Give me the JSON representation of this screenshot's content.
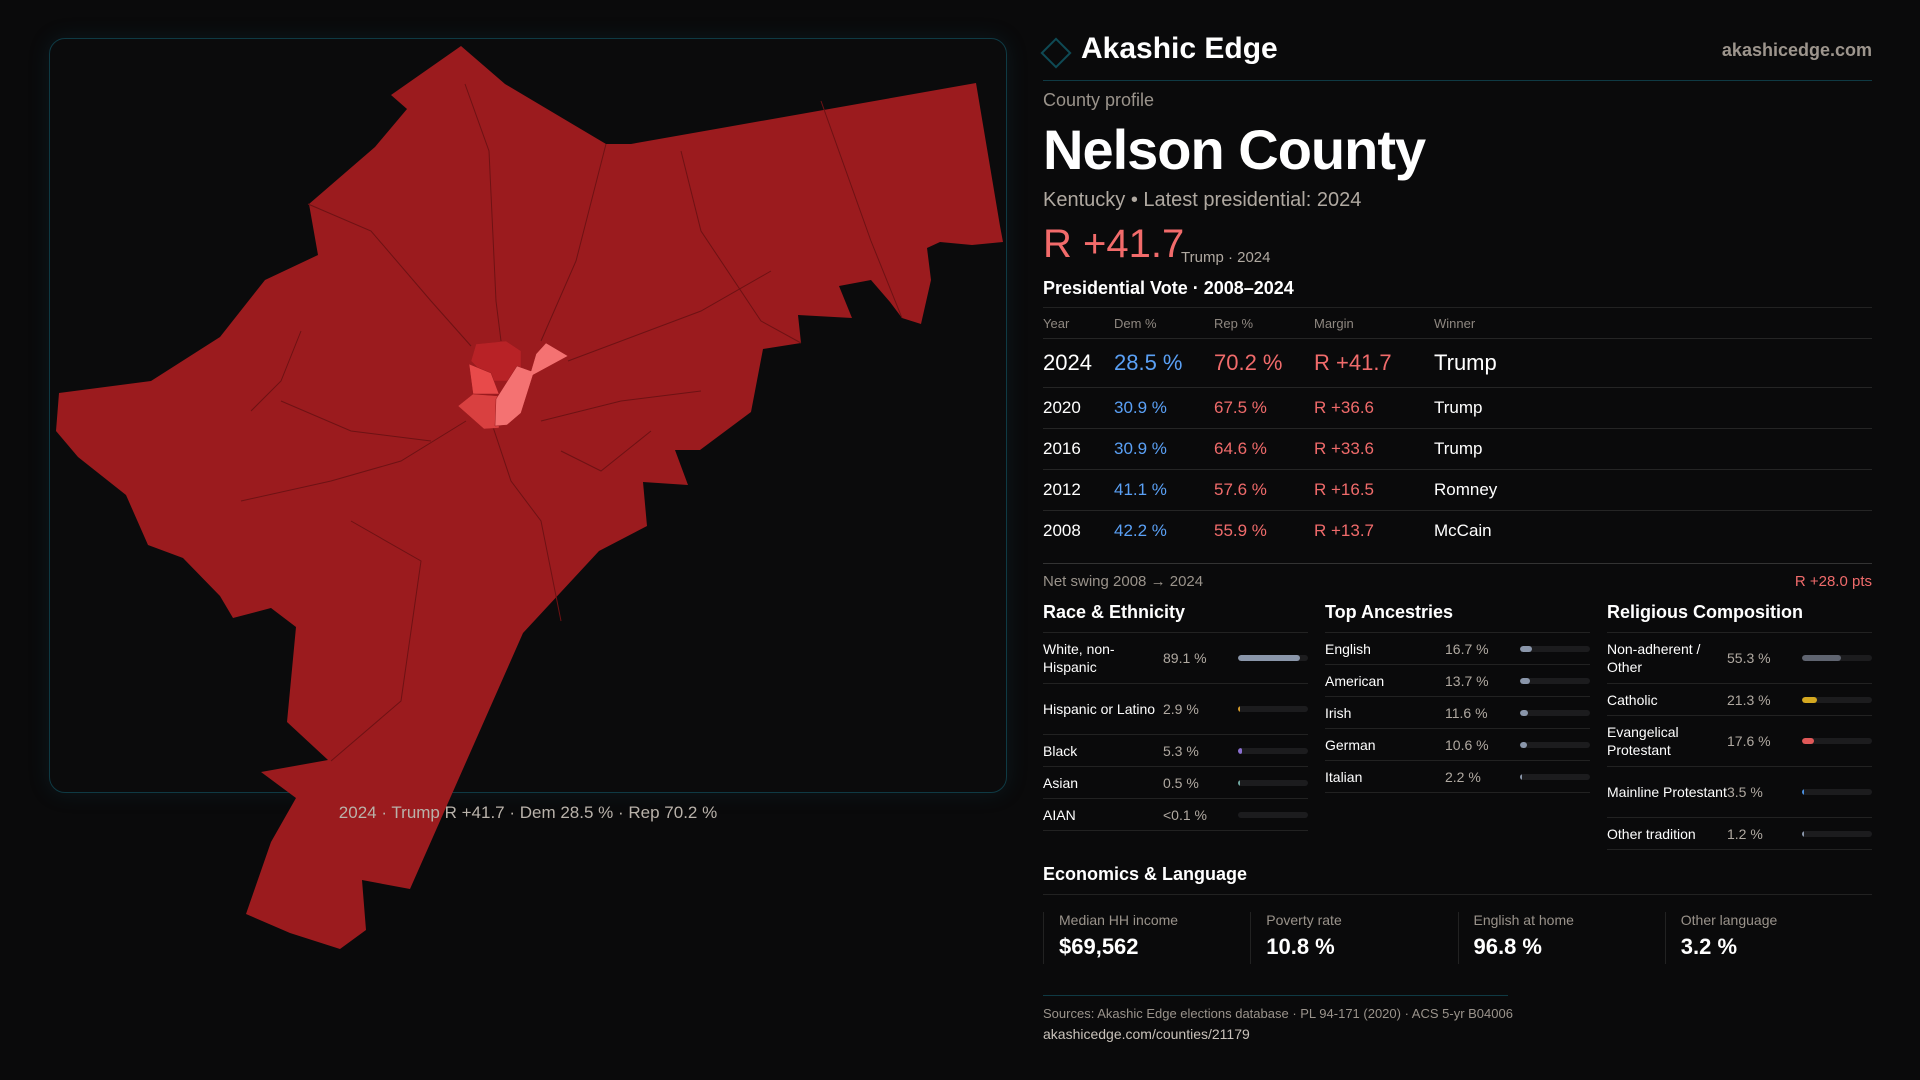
{
  "brand": {
    "name": "Akashic Edge",
    "site": "akashicedge.com",
    "logo_icon": "diamond-outline-icon"
  },
  "profile": {
    "kicker": "County profile",
    "title": "Nelson County",
    "subtitle": "Kentucky • Latest presidential: 2024",
    "margin": "R +41.7",
    "margin_sub": "Trump · 2024"
  },
  "map": {
    "caption": "2024 · Trump R +41.7 · Dem 28.5 % · Rep 70.2 %",
    "colors": {
      "base": "#9b1b1e",
      "light1": "#f47272",
      "light2": "#e84a4a",
      "mid": "#d94040",
      "border": "#0f3a44"
    }
  },
  "votes": {
    "title": "Presidential Vote · 2008–2024",
    "headers": [
      "Year",
      "Dem %",
      "Rep %",
      "Margin",
      "Winner"
    ],
    "rows": [
      [
        "2024",
        "28.5 %",
        "70.2 %",
        "R +41.7",
        "Trump"
      ],
      [
        "2020",
        "30.9 %",
        "67.5 %",
        "R +36.6",
        "Trump"
      ],
      [
        "2016",
        "30.9 %",
        "64.6 %",
        "R +33.6",
        "Trump"
      ],
      [
        "2012",
        "41.1 %",
        "57.6 %",
        "R +16.5",
        "Romney"
      ],
      [
        "2008",
        "42.2 %",
        "55.9 %",
        "R +13.7",
        "McCain"
      ]
    ],
    "swing_label": "Net swing 2008 → 2024",
    "swing_value": "R +28.0 pts"
  },
  "race": {
    "title": "Race & Ethnicity",
    "items": [
      {
        "label": "White, non-Hispanic",
        "value": "89.1 %",
        "fraction": 0.891,
        "color": "#8a96aa"
      },
      {
        "label": "Hispanic or Latino",
        "value": "2.9 %",
        "fraction": 0.029,
        "color": "#d49a2a"
      },
      {
        "label": "Black",
        "value": "5.3 %",
        "fraction": 0.053,
        "color": "#8a6fd0"
      },
      {
        "label": "Asian",
        "value": "0.5 %",
        "fraction": 0.005,
        "color": "#6fa6a0"
      },
      {
        "label": "AIAN",
        "value": "<0.1 %",
        "fraction": 0.0,
        "color": "#888"
      }
    ]
  },
  "ancestry": {
    "title": "Top Ancestries",
    "items": [
      {
        "label": "English",
        "value": "16.7 %",
        "fraction": 0.167,
        "color": "#8a96aa"
      },
      {
        "label": "American",
        "value": "13.7 %",
        "fraction": 0.137,
        "color": "#8a96aa"
      },
      {
        "label": "Irish",
        "value": "11.6 %",
        "fraction": 0.116,
        "color": "#8a96aa"
      },
      {
        "label": "German",
        "value": "10.6 %",
        "fraction": 0.106,
        "color": "#8a96aa"
      },
      {
        "label": "Italian",
        "value": "2.2 %",
        "fraction": 0.022,
        "color": "#8a96aa"
      }
    ]
  },
  "religion": {
    "title": "Religious Composition",
    "items": [
      {
        "label": "Non-adherent / Other",
        "value": "55.3 %",
        "fraction": 0.553,
        "color": "#5f6470"
      },
      {
        "label": "Catholic",
        "value": "21.3 %",
        "fraction": 0.213,
        "color": "#d4a820"
      },
      {
        "label": "Evangelical Protestant",
        "value": "17.6 %",
        "fraction": 0.176,
        "color": "#e05858"
      },
      {
        "label": "Mainline Protestant",
        "value": "3.5 %",
        "fraction": 0.035,
        "color": "#4a8fe0"
      },
      {
        "label": "Other tradition",
        "value": "1.2 %",
        "fraction": 0.012,
        "color": "#8a96aa"
      }
    ]
  },
  "economics": {
    "title": "Economics & Language",
    "cards": [
      {
        "label": "Median HH income",
        "value": "$69,562"
      },
      {
        "label": "Poverty rate",
        "value": "10.8 %"
      },
      {
        "label": "English at home",
        "value": "96.8 %"
      },
      {
        "label": "Other language",
        "value": "3.2 %"
      }
    ]
  },
  "footer": {
    "sources": "Sources: Akashic Edge elections database · PL 94-171 (2020) · ACS 5-yr B04006",
    "url": "akashicedge.com/counties/21179"
  }
}
